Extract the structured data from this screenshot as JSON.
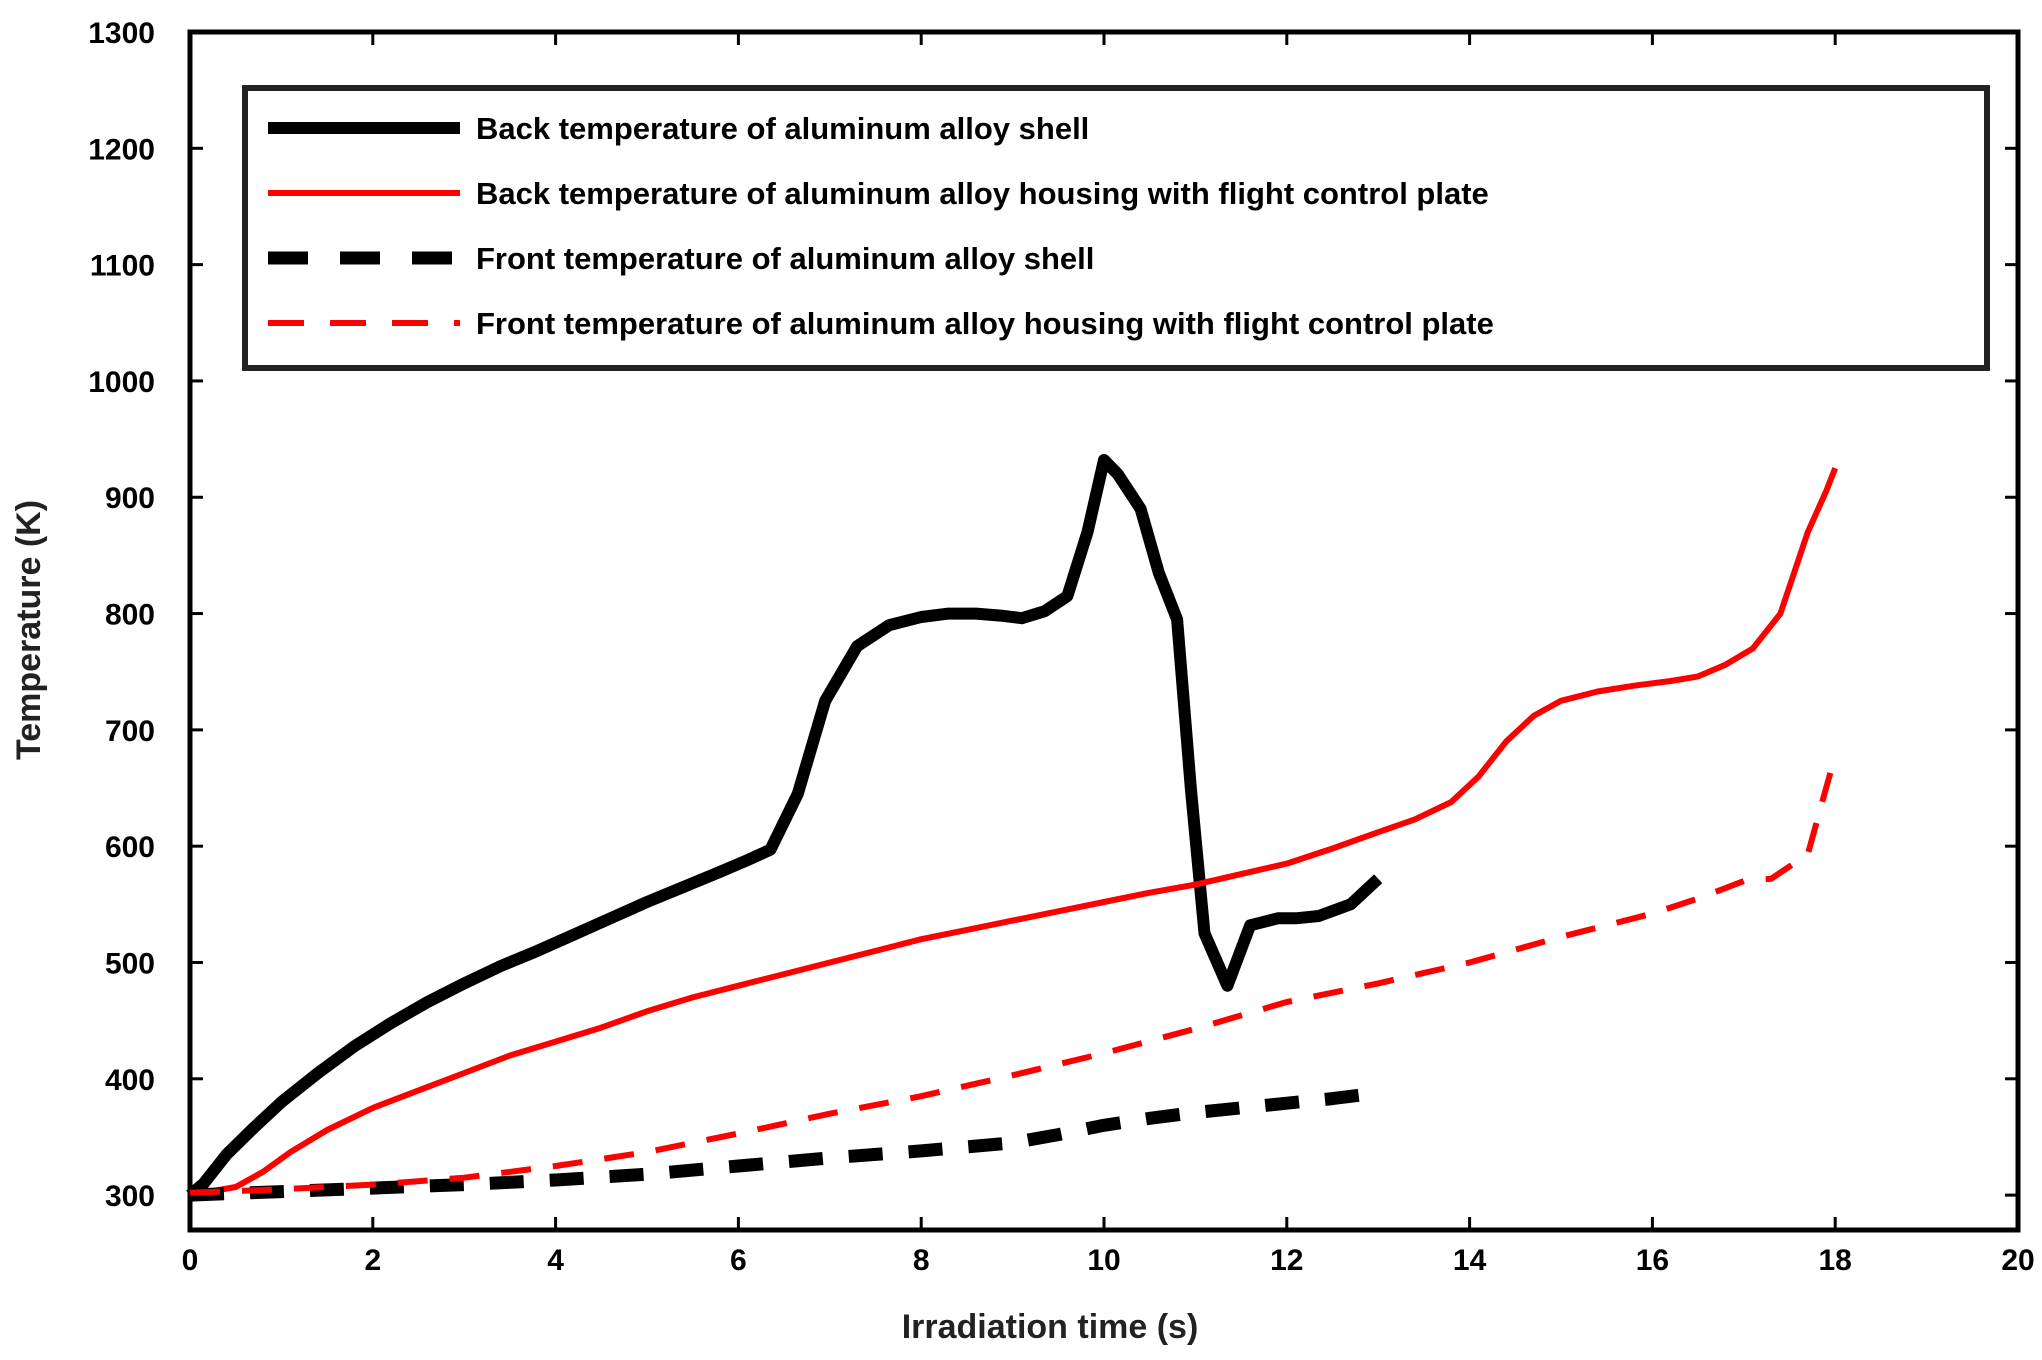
{
  "chart_data": {
    "type": "line",
    "title": "",
    "xlabel": "Irradiation time (s)",
    "ylabel": "Temperature (K)",
    "xlim": [
      0,
      20
    ],
    "ylim": [
      270,
      1300
    ],
    "xticks": [
      "0",
      "2",
      "4",
      "6",
      "8",
      "10",
      "12",
      "14",
      "16",
      "18",
      "20"
    ],
    "yticks": [
      "300",
      "400",
      "500",
      "600",
      "700",
      "800",
      "900",
      "1000",
      "1100",
      "1200",
      "1300"
    ],
    "grid": false,
    "legend_position": "top",
    "series": [
      {
        "name": "Back temperature of aluminum alloy shell",
        "color": "#000000",
        "style": "solid-thick",
        "x": [
          0,
          0.15,
          0.4,
          0.7,
          1.0,
          1.4,
          1.8,
          2.2,
          2.6,
          3.0,
          3.4,
          3.8,
          4.2,
          4.6,
          5.0,
          5.4,
          5.8,
          6.1,
          6.35,
          6.65,
          6.95,
          7.3,
          7.65,
          8.0,
          8.3,
          8.6,
          8.9,
          9.1,
          9.35,
          9.6,
          9.82,
          10.0,
          10.15,
          10.4,
          10.6,
          10.8,
          10.95,
          11.1,
          11.35,
          11.6,
          11.9,
          12.1,
          12.35,
          12.7,
          13.0
        ],
        "values": [
          300,
          310,
          335,
          358,
          380,
          405,
          428,
          448,
          466,
          482,
          497,
          510,
          524,
          538,
          552,
          565,
          578,
          588,
          597,
          645,
          725,
          772,
          790,
          797,
          800,
          800,
          798,
          796,
          802,
          815,
          870,
          932,
          920,
          890,
          835,
          795,
          650,
          525,
          480,
          532,
          538,
          538,
          540,
          550,
          572
        ]
      },
      {
        "name": "Back temperature of aluminum alloy housing with flight control plate",
        "color": "#ff0000",
        "style": "solid",
        "x": [
          0,
          0.5,
          0.8,
          1.1,
          1.5,
          2.0,
          2.5,
          3.0,
          3.5,
          4.0,
          4.5,
          5.0,
          5.5,
          6.0,
          6.5,
          7.0,
          7.5,
          8.0,
          8.5,
          9.0,
          9.5,
          10.0,
          10.5,
          11.0,
          11.5,
          12.0,
          12.5,
          13.0,
          13.4,
          13.8,
          14.1,
          14.4,
          14.7,
          15.0,
          15.4,
          15.8,
          16.2,
          16.5,
          16.8,
          17.1,
          17.4,
          17.7,
          17.9,
          18.0
        ],
        "values": [
          300,
          307,
          320,
          337,
          356,
          375,
          390,
          405,
          420,
          432,
          444,
          458,
          470,
          480,
          490,
          500,
          510,
          520,
          528,
          536,
          544,
          552,
          560,
          567,
          576,
          585,
          598,
          612,
          623,
          638,
          660,
          690,
          712,
          725,
          733,
          738,
          742,
          746,
          756,
          770,
          800,
          870,
          905,
          925
        ]
      },
      {
        "name": "Front temperature of aluminum alloy shell",
        "color": "#000000",
        "style": "dashed-thick",
        "x": [
          0,
          1.0,
          2.0,
          3.0,
          4.0,
          5.0,
          6.0,
          7.0,
          8.0,
          9.0,
          9.5,
          10.0,
          10.5,
          11.0,
          11.5,
          12.0,
          12.5,
          13.0
        ],
        "values": [
          300,
          303,
          306,
          309,
          313,
          318,
          325,
          332,
          338,
          345,
          352,
          360,
          366,
          371,
          375,
          379,
          383,
          388
        ]
      },
      {
        "name": "Front temperature of aluminum alloy housing with flight control plate",
        "color": "#ff0000",
        "style": "dashed",
        "x": [
          0,
          1.0,
          2.0,
          3.0,
          4.0,
          5.0,
          6.0,
          7.0,
          8.0,
          9.0,
          10.0,
          11.0,
          12.0,
          13.0,
          14.0,
          15.0,
          16.0,
          16.5,
          17.0,
          17.3,
          17.7,
          17.9,
          18.0
        ],
        "values": [
          302,
          305,
          309,
          315,
          325,
          337,
          353,
          370,
          385,
          403,
          422,
          443,
          466,
          482,
          500,
          522,
          542,
          555,
          570,
          572,
          593,
          650,
          678
        ]
      }
    ]
  }
}
